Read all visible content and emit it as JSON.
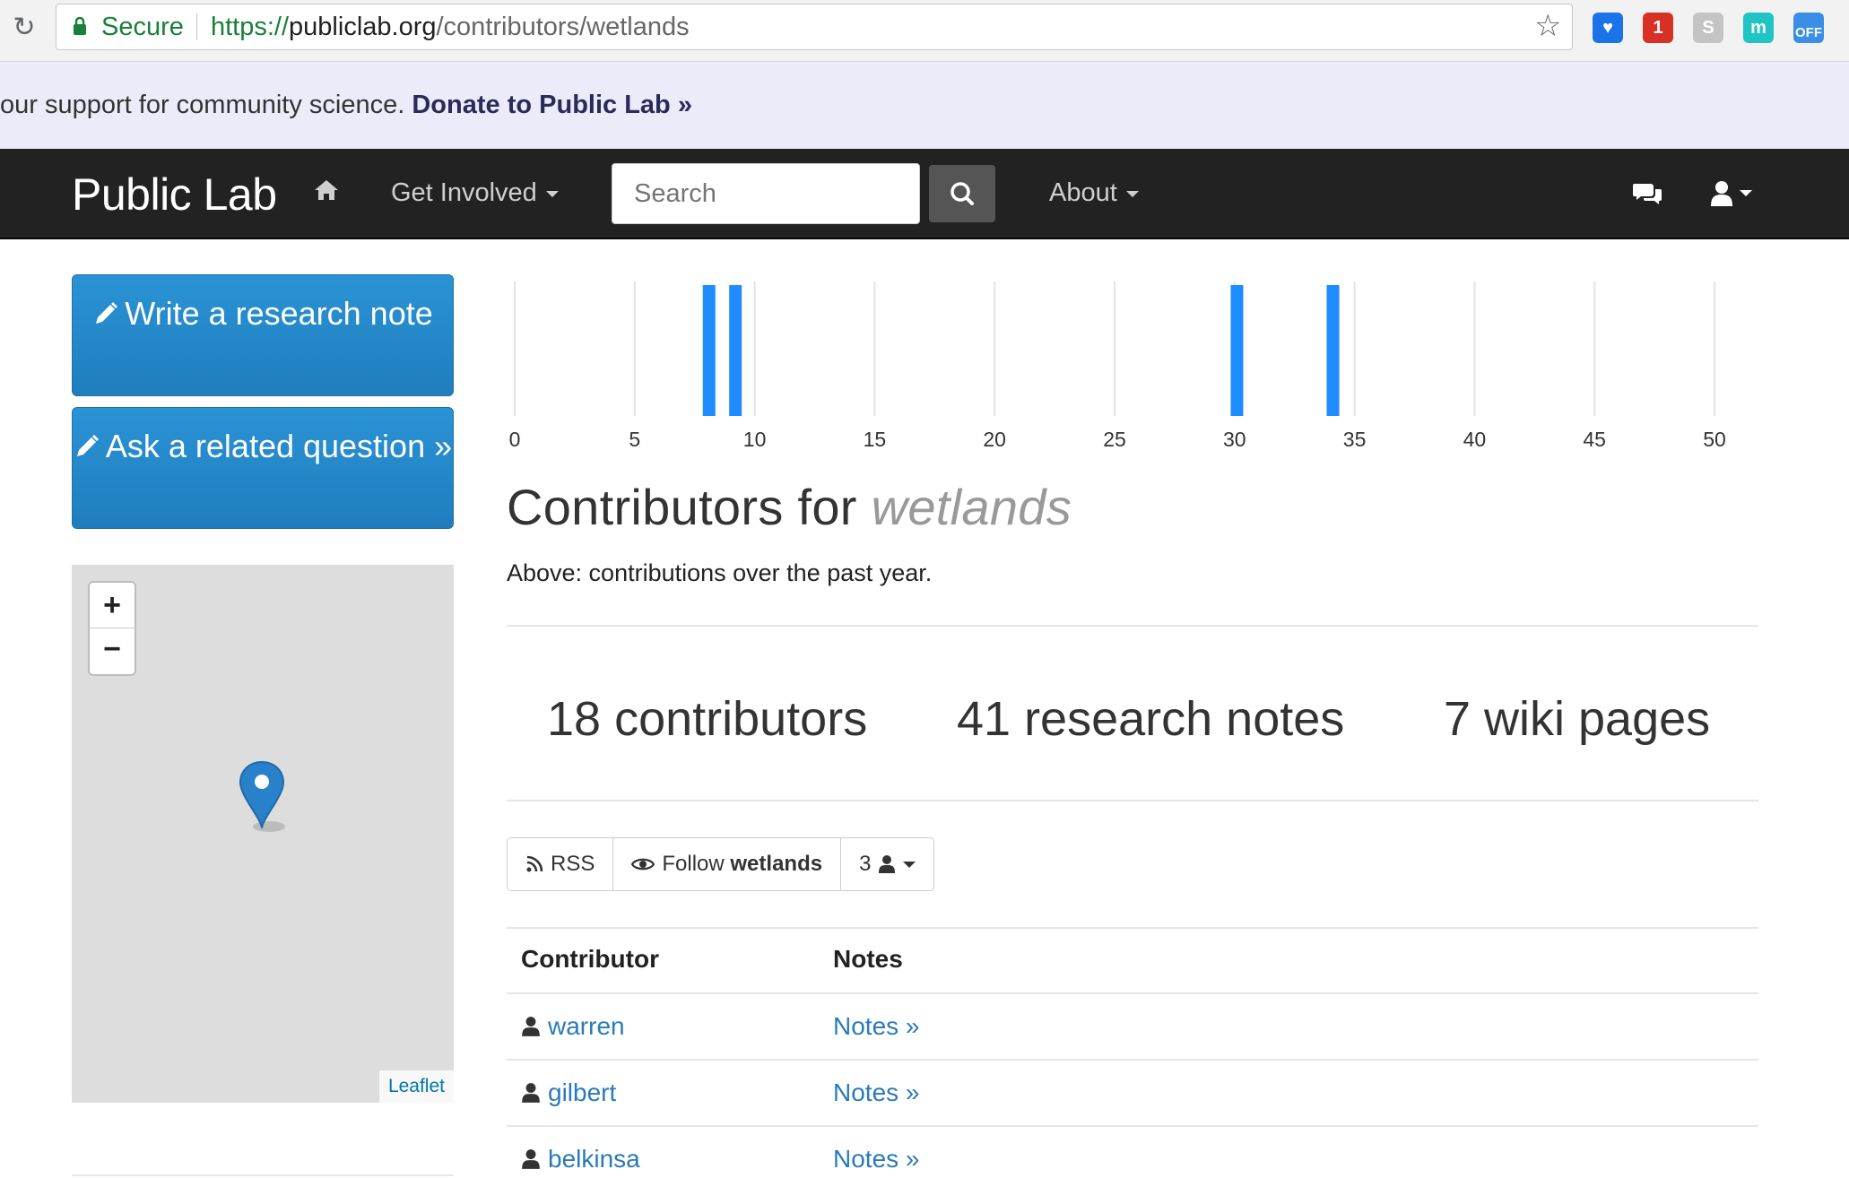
{
  "browser": {
    "secure_label": "Secure",
    "url_protocol": "https://",
    "url_host": "publiclab.org",
    "url_path": "/contributors/wetlands",
    "extensions": [
      {
        "name": "heart-extension-icon",
        "label": "♥",
        "color": "#1a73e8"
      },
      {
        "name": "mail-extension-icon",
        "label": "1",
        "color": "#d93025"
      },
      {
        "name": "skype-extension-icon",
        "label": "S",
        "color": "#c4c4c4"
      },
      {
        "name": "m-extension-icon",
        "label": "m",
        "color": "#20c4c4"
      },
      {
        "name": "off-extension-icon",
        "label": "OFF",
        "color": "#3a8ee6"
      }
    ]
  },
  "banner": {
    "text": "our support for community science. ",
    "link": "Donate to Public Lab »"
  },
  "nav": {
    "brand": "Public Lab",
    "get_involved": "Get Involved",
    "search_placeholder": "Search",
    "about": "About"
  },
  "sidebar": {
    "write_button": "Write a research note",
    "ask_button": "Ask a related question »",
    "zoom_in": "+",
    "zoom_out": "−",
    "map_attribution": "Leaflet"
  },
  "chart_data": {
    "type": "bar",
    "x_ticks": [
      0,
      5,
      10,
      15,
      20,
      25,
      30,
      35,
      40,
      45,
      50
    ],
    "xlim": [
      0,
      50
    ],
    "bars": [
      {
        "x": 8.1,
        "value": 1
      },
      {
        "x": 9.2,
        "value": 1
      },
      {
        "x": 30.1,
        "value": 1
      },
      {
        "x": 34.1,
        "value": 1
      }
    ],
    "bar_color": "#1e8bff",
    "grid": true
  },
  "main": {
    "title_prefix": "Contributors for ",
    "title_tag": "wetlands",
    "subtitle": "Above: contributions over the past year.",
    "stats": {
      "contributors": "18 contributors",
      "notes": "41 research notes",
      "wiki": "7 wiki pages"
    },
    "actions": {
      "rss": "RSS",
      "follow_prefix": "Follow ",
      "follow_tag": "wetlands",
      "followers": "3"
    },
    "table": {
      "headers": [
        "Contributor",
        "Notes"
      ],
      "rows": [
        {
          "user": "warren",
          "notes": "Notes »"
        },
        {
          "user": "gilbert",
          "notes": "Notes »"
        },
        {
          "user": "belkinsa",
          "notes": "Notes »"
        }
      ]
    }
  }
}
